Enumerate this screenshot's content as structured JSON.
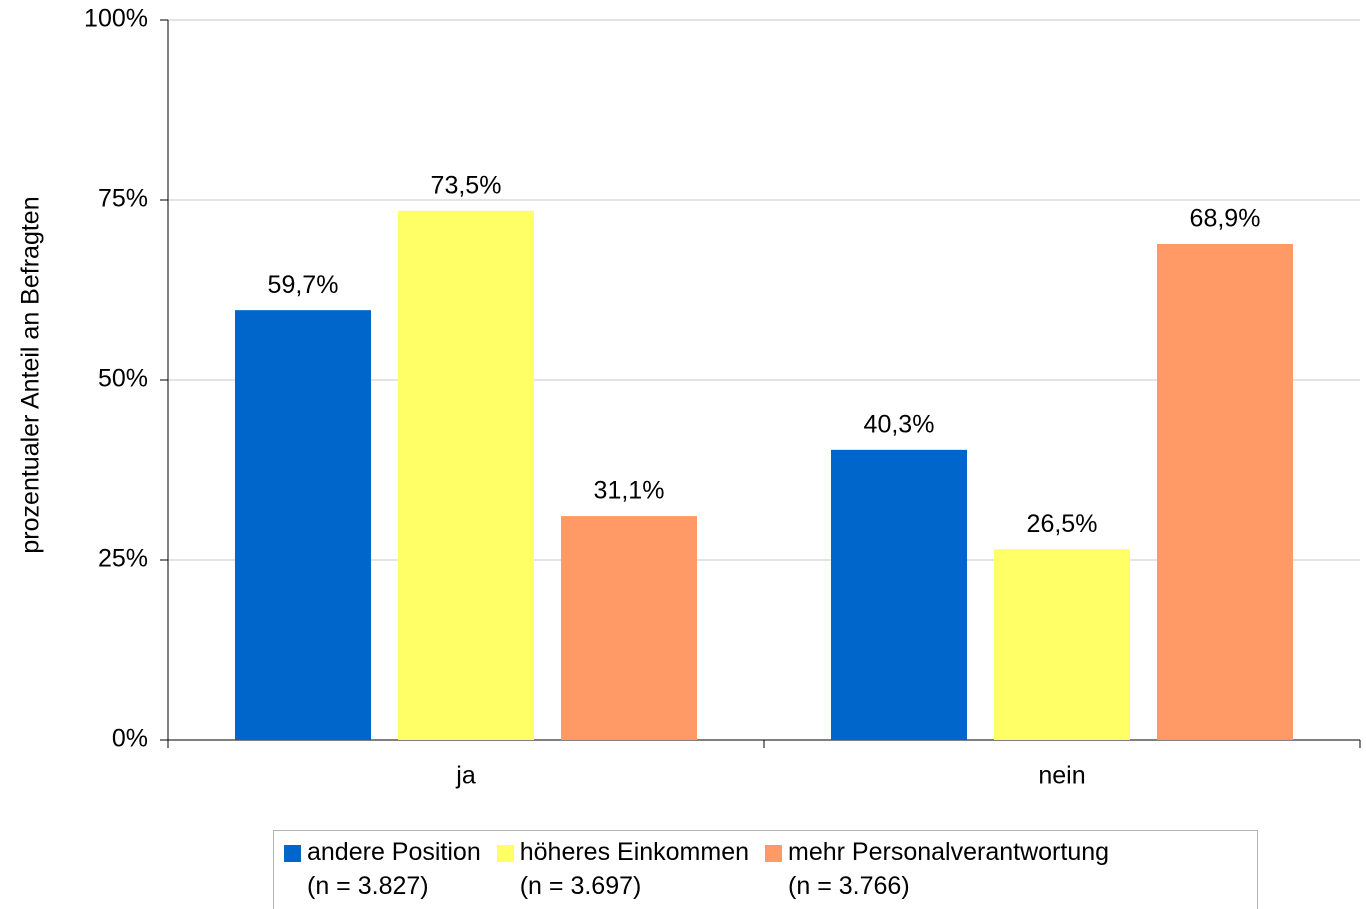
{
  "chart_data": {
    "type": "bar",
    "y_label": "prozentualer Anteil an Befragten",
    "categories": [
      "ja",
      "nein"
    ],
    "series": [
      {
        "name": "andere Position\n(n = 3.827)",
        "color": "#0066cc",
        "values": [
          59.7,
          40.3
        ],
        "value_labels": [
          "59,7%",
          "40,3%"
        ]
      },
      {
        "name": "höheres Einkommen\n(n = 3.697)",
        "color": "#ffff66",
        "values": [
          73.5,
          26.5
        ],
        "value_labels": [
          "73,5%",
          "26,5%"
        ]
      },
      {
        "name": "mehr Personalverantwortung\n(n = 3.766)",
        "color": "#ff9966",
        "values": [
          31.1,
          68.9
        ],
        "value_labels": [
          "31,1%",
          "68,9%"
        ]
      }
    ],
    "ylim": [
      0,
      100
    ],
    "yticks": [
      {
        "value": 0,
        "label": "0%"
      },
      {
        "value": 25,
        "label": "25%"
      },
      {
        "value": 50,
        "label": "50%"
      },
      {
        "value": 75,
        "label": "75%"
      },
      {
        "value": 100,
        "label": "100%"
      }
    ],
    "grid": true
  }
}
